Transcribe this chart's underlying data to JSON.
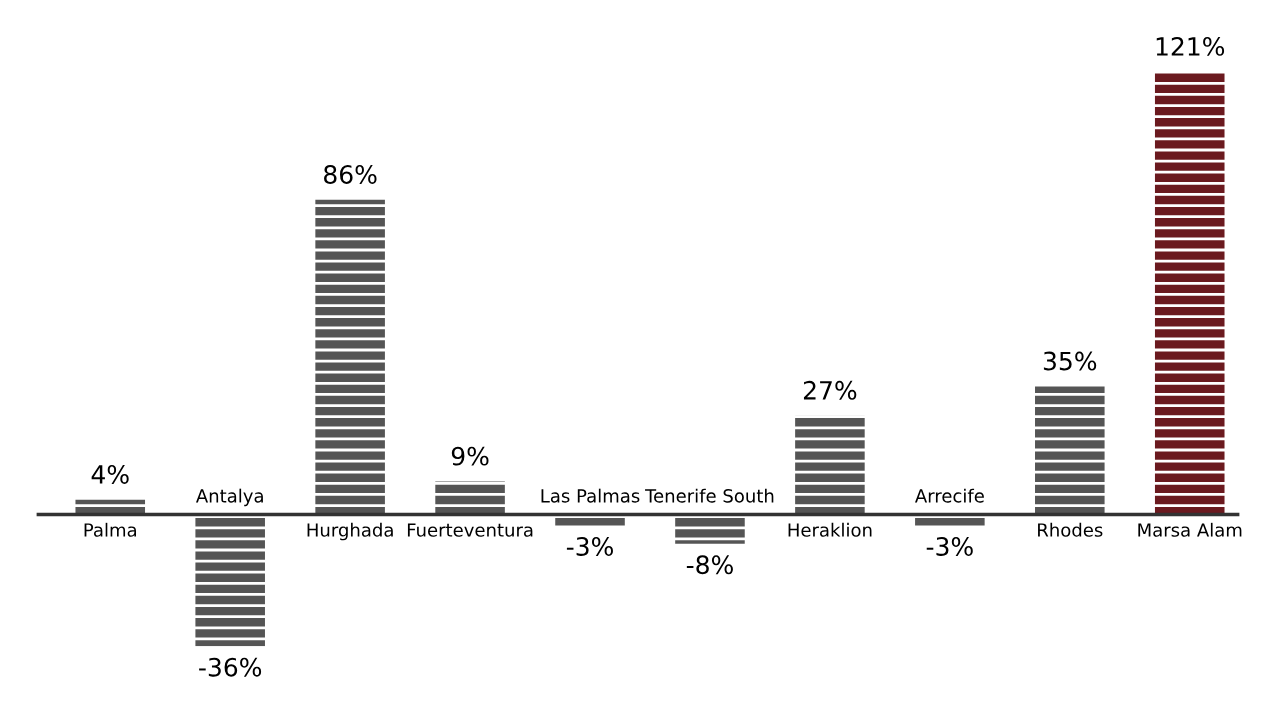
{
  "chart_data": {
    "type": "bar",
    "categories": [
      "Palma",
      "Antalya",
      "Hurghada",
      "Fuerteventura",
      "Las Palmas",
      "Tenerife South",
      "Heraklion",
      "Arrecife",
      "Rhodes",
      "Marsa Alam"
    ],
    "values": [
      4,
      -36,
      86,
      9,
      -3,
      -8,
      27,
      -3,
      35,
      121
    ],
    "value_labels": [
      "4%",
      "-36%",
      "86%",
      "9%",
      "-3%",
      "-8%",
      "27%",
      "-3%",
      "35%",
      "121%"
    ],
    "colors": [
      "#555555",
      "#555555",
      "#555555",
      "#555555",
      "#555555",
      "#555555",
      "#555555",
      "#555555",
      "#555555",
      "#6b1a1f"
    ],
    "legend": false
  }
}
